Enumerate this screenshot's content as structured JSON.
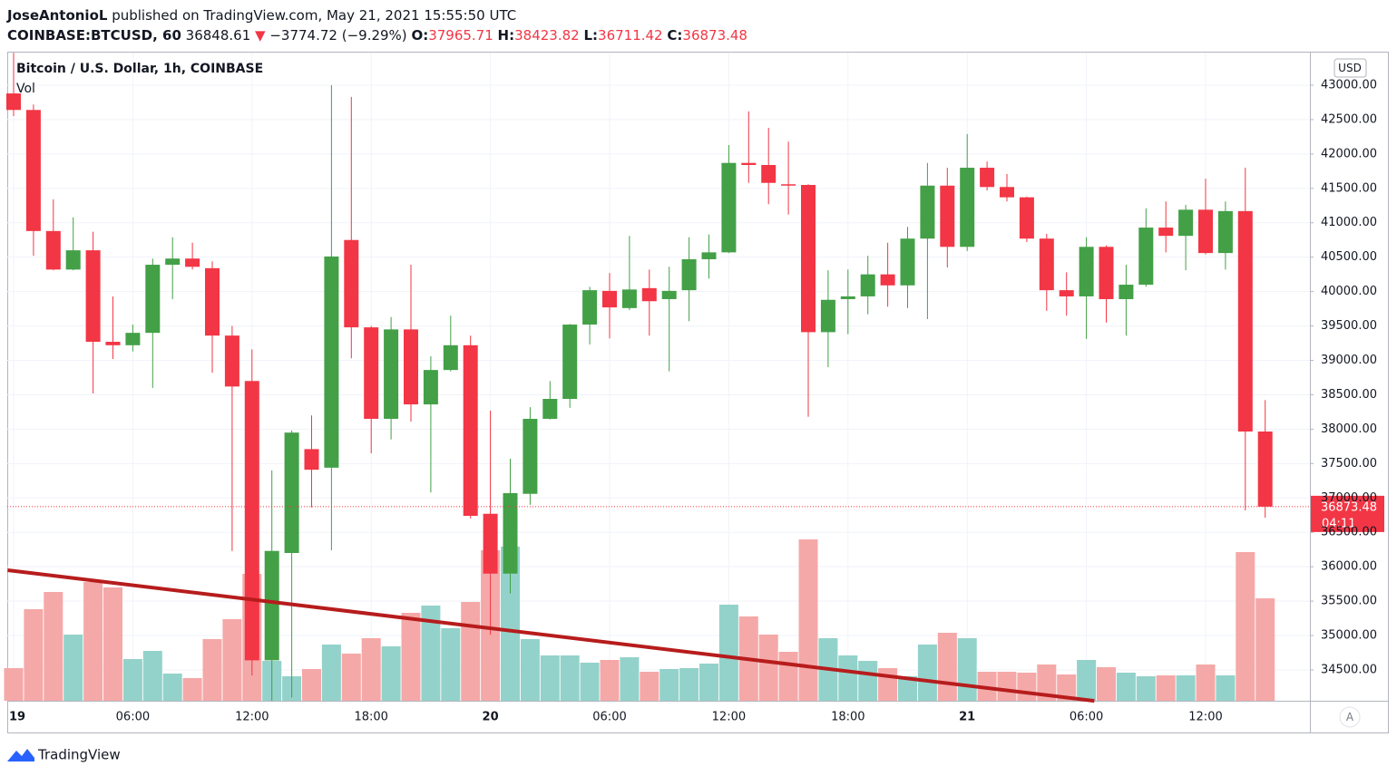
{
  "header": {
    "author": "JoseAntonioL",
    "published": "published on TradingView.com, May 21, 2021 15:55:50 UTC",
    "symbol": "COINBASE:BTCUSD, 60",
    "price": "36848.61",
    "change_arrow": "▼",
    "change": "−3774.72 (−9.29%)",
    "o_label": "O:",
    "o": "37965.71",
    "h_label": "H:",
    "h": "38423.82",
    "l_label": "L:",
    "l": "36711.42",
    "c_label": "C:",
    "c": "36873.48"
  },
  "footer": {
    "brand": "TradingView"
  },
  "chart_data": {
    "type": "candlestick",
    "title": "Bitcoin / U.S. Dollar, 1h, COINBASE",
    "volume_label": "Vol",
    "currency": "USD",
    "categories": [
      "19",
      null,
      null,
      null,
      null,
      null,
      "06:00",
      null,
      null,
      null,
      null,
      null,
      "12:00",
      null,
      null,
      null,
      null,
      null,
      "18:00",
      null,
      null,
      null,
      null,
      null,
      "20",
      null,
      null,
      null,
      null,
      null,
      "06:00",
      null,
      null,
      null,
      null,
      null,
      "12:00",
      null,
      null,
      null,
      null,
      null,
      "18:00",
      null,
      null,
      null,
      null,
      null,
      "21",
      null,
      null,
      null,
      null,
      null,
      "06:00",
      null,
      null,
      null,
      null,
      null,
      "12:00",
      null,
      null,
      null
    ],
    "open": [
      42880,
      42640,
      40880,
      40320,
      40600,
      39270,
      39220,
      39400,
      40390,
      40480,
      40340,
      39360,
      38700,
      34640,
      36200,
      37710,
      37440,
      40750,
      39480,
      38150,
      39450,
      38360,
      38860,
      39220,
      36770,
      35900,
      37060,
      38150,
      38440,
      39520,
      40010,
      39760,
      40050,
      39890,
      40020,
      40470,
      40570,
      41870,
      41840,
      41560,
      41550,
      39410,
      39890,
      39930,
      40250,
      40090,
      40770,
      41540,
      40650,
      41800,
      41520,
      41370,
      40770,
      40020,
      39930,
      40650,
      39890,
      40100,
      40930,
      40810,
      41190,
      40560,
      41170,
      37965.71
    ],
    "high": [
      43470,
      42720,
      41340,
      41080,
      40870,
      39930,
      39520,
      40480,
      40790,
      40710,
      40440,
      39500,
      39160,
      37400,
      37980,
      38200,
      43000,
      42830,
      39500,
      39630,
      40390,
      39060,
      39650,
      39360,
      38270,
      37570,
      38320,
      38700,
      39530,
      40070,
      40270,
      40810,
      40320,
      40360,
      40790,
      40830,
      42130,
      42620,
      42380,
      42180,
      41560,
      40310,
      40320,
      40520,
      40710,
      40940,
      41870,
      41800,
      42290,
      41890,
      41710,
      41380,
      40840,
      40280,
      40790,
      40670,
      40390,
      41210,
      41310,
      41260,
      41640,
      41310,
      41800,
      38423.82
    ],
    "low": [
      42550,
      40520,
      40310,
      40310,
      38520,
      39020,
      39130,
      38600,
      39890,
      40320,
      38820,
      36230,
      34420,
      34050,
      34100,
      36860,
      36240,
      39030,
      37650,
      37850,
      38110,
      37080,
      38840,
      36700,
      35010,
      35610,
      36900,
      38140,
      38310,
      39230,
      39320,
      39730,
      39360,
      38840,
      39570,
      40190,
      40560,
      41580,
      41270,
      41120,
      38180,
      38900,
      39380,
      39670,
      39780,
      39760,
      39600,
      40350,
      40590,
      41470,
      41310,
      40720,
      39720,
      39650,
      39310,
      39550,
      39360,
      40070,
      40570,
      40310,
      40540,
      40320,
      36820,
      36711.42
    ],
    "close": [
      42640,
      40880,
      40320,
      40600,
      39270,
      39220,
      39400,
      40390,
      40480,
      40360,
      39360,
      38620,
      34640,
      36230,
      37950,
      37410,
      40510,
      39480,
      38150,
      39450,
      38360,
      38860,
      39220,
      36740,
      35900,
      37070,
      38150,
      38440,
      39520,
      40020,
      39770,
      40030,
      39860,
      40010,
      40470,
      40570,
      41870,
      41840,
      41580,
      41550,
      39410,
      39880,
      39930,
      40250,
      40090,
      40770,
      41540,
      40650,
      41800,
      41520,
      41370,
      40770,
      40020,
      39930,
      40650,
      39890,
      40100,
      40930,
      40810,
      41190,
      40560,
      41170,
      37965.71,
      36873.48
    ],
    "volume": [
      36,
      101,
      120,
      73,
      131,
      125,
      46,
      55,
      30,
      25,
      68,
      90,
      140,
      44,
      27,
      35,
      62,
      52,
      69,
      60,
      97,
      105,
      80,
      109,
      166,
      170,
      68,
      50,
      50,
      42,
      45,
      48,
      32,
      35,
      36,
      41,
      106,
      93,
      73,
      54,
      178,
      69,
      50,
      44,
      36,
      27,
      62,
      75,
      69,
      32,
      32,
      31,
      40,
      29,
      45,
      37,
      31,
      27,
      28,
      28,
      40,
      28,
      164,
      113
    ],
    "up_color": "#43a047",
    "down_color": "#f23645",
    "vol_up_color": "#93d2ca",
    "vol_down_color": "#f5a8a8",
    "ylim": [
      34052,
      43474
    ],
    "volume_lim": [
      0,
      715
    ],
    "yticks": [
      {
        "value": 34500,
        "label": "34500.00"
      },
      {
        "value": 35000,
        "label": "35000.00"
      },
      {
        "value": 35500,
        "label": "35500.00"
      },
      {
        "value": 36000,
        "label": "36000.00"
      },
      {
        "value": 36500,
        "label": "36500.00"
      },
      {
        "value": 37000,
        "label": "37000.00"
      },
      {
        "value": 37500,
        "label": "37500.00"
      },
      {
        "value": 38000,
        "label": "38000.00"
      },
      {
        "value": 38500,
        "label": "38500.00"
      },
      {
        "value": 39000,
        "label": "39000.00"
      },
      {
        "value": 39500,
        "label": "39500.00"
      },
      {
        "value": 40000,
        "label": "40000.00"
      },
      {
        "value": 40500,
        "label": "40500.00"
      },
      {
        "value": 41000,
        "label": "41000.00"
      },
      {
        "value": 41500,
        "label": "41500.00"
      },
      {
        "value": 42000,
        "label": "42000.00"
      },
      {
        "value": 42500,
        "label": "42500.00"
      },
      {
        "value": 43000,
        "label": "43000.00"
      }
    ],
    "grid": true,
    "trendline": {
      "color": "#b71c1c",
      "x": [
        -0.3,
        54.4
      ],
      "y": [
        35950,
        34050
      ]
    },
    "last_price_label": "36873.48",
    "countdown": "04:11",
    "scale_mode": "A"
  }
}
